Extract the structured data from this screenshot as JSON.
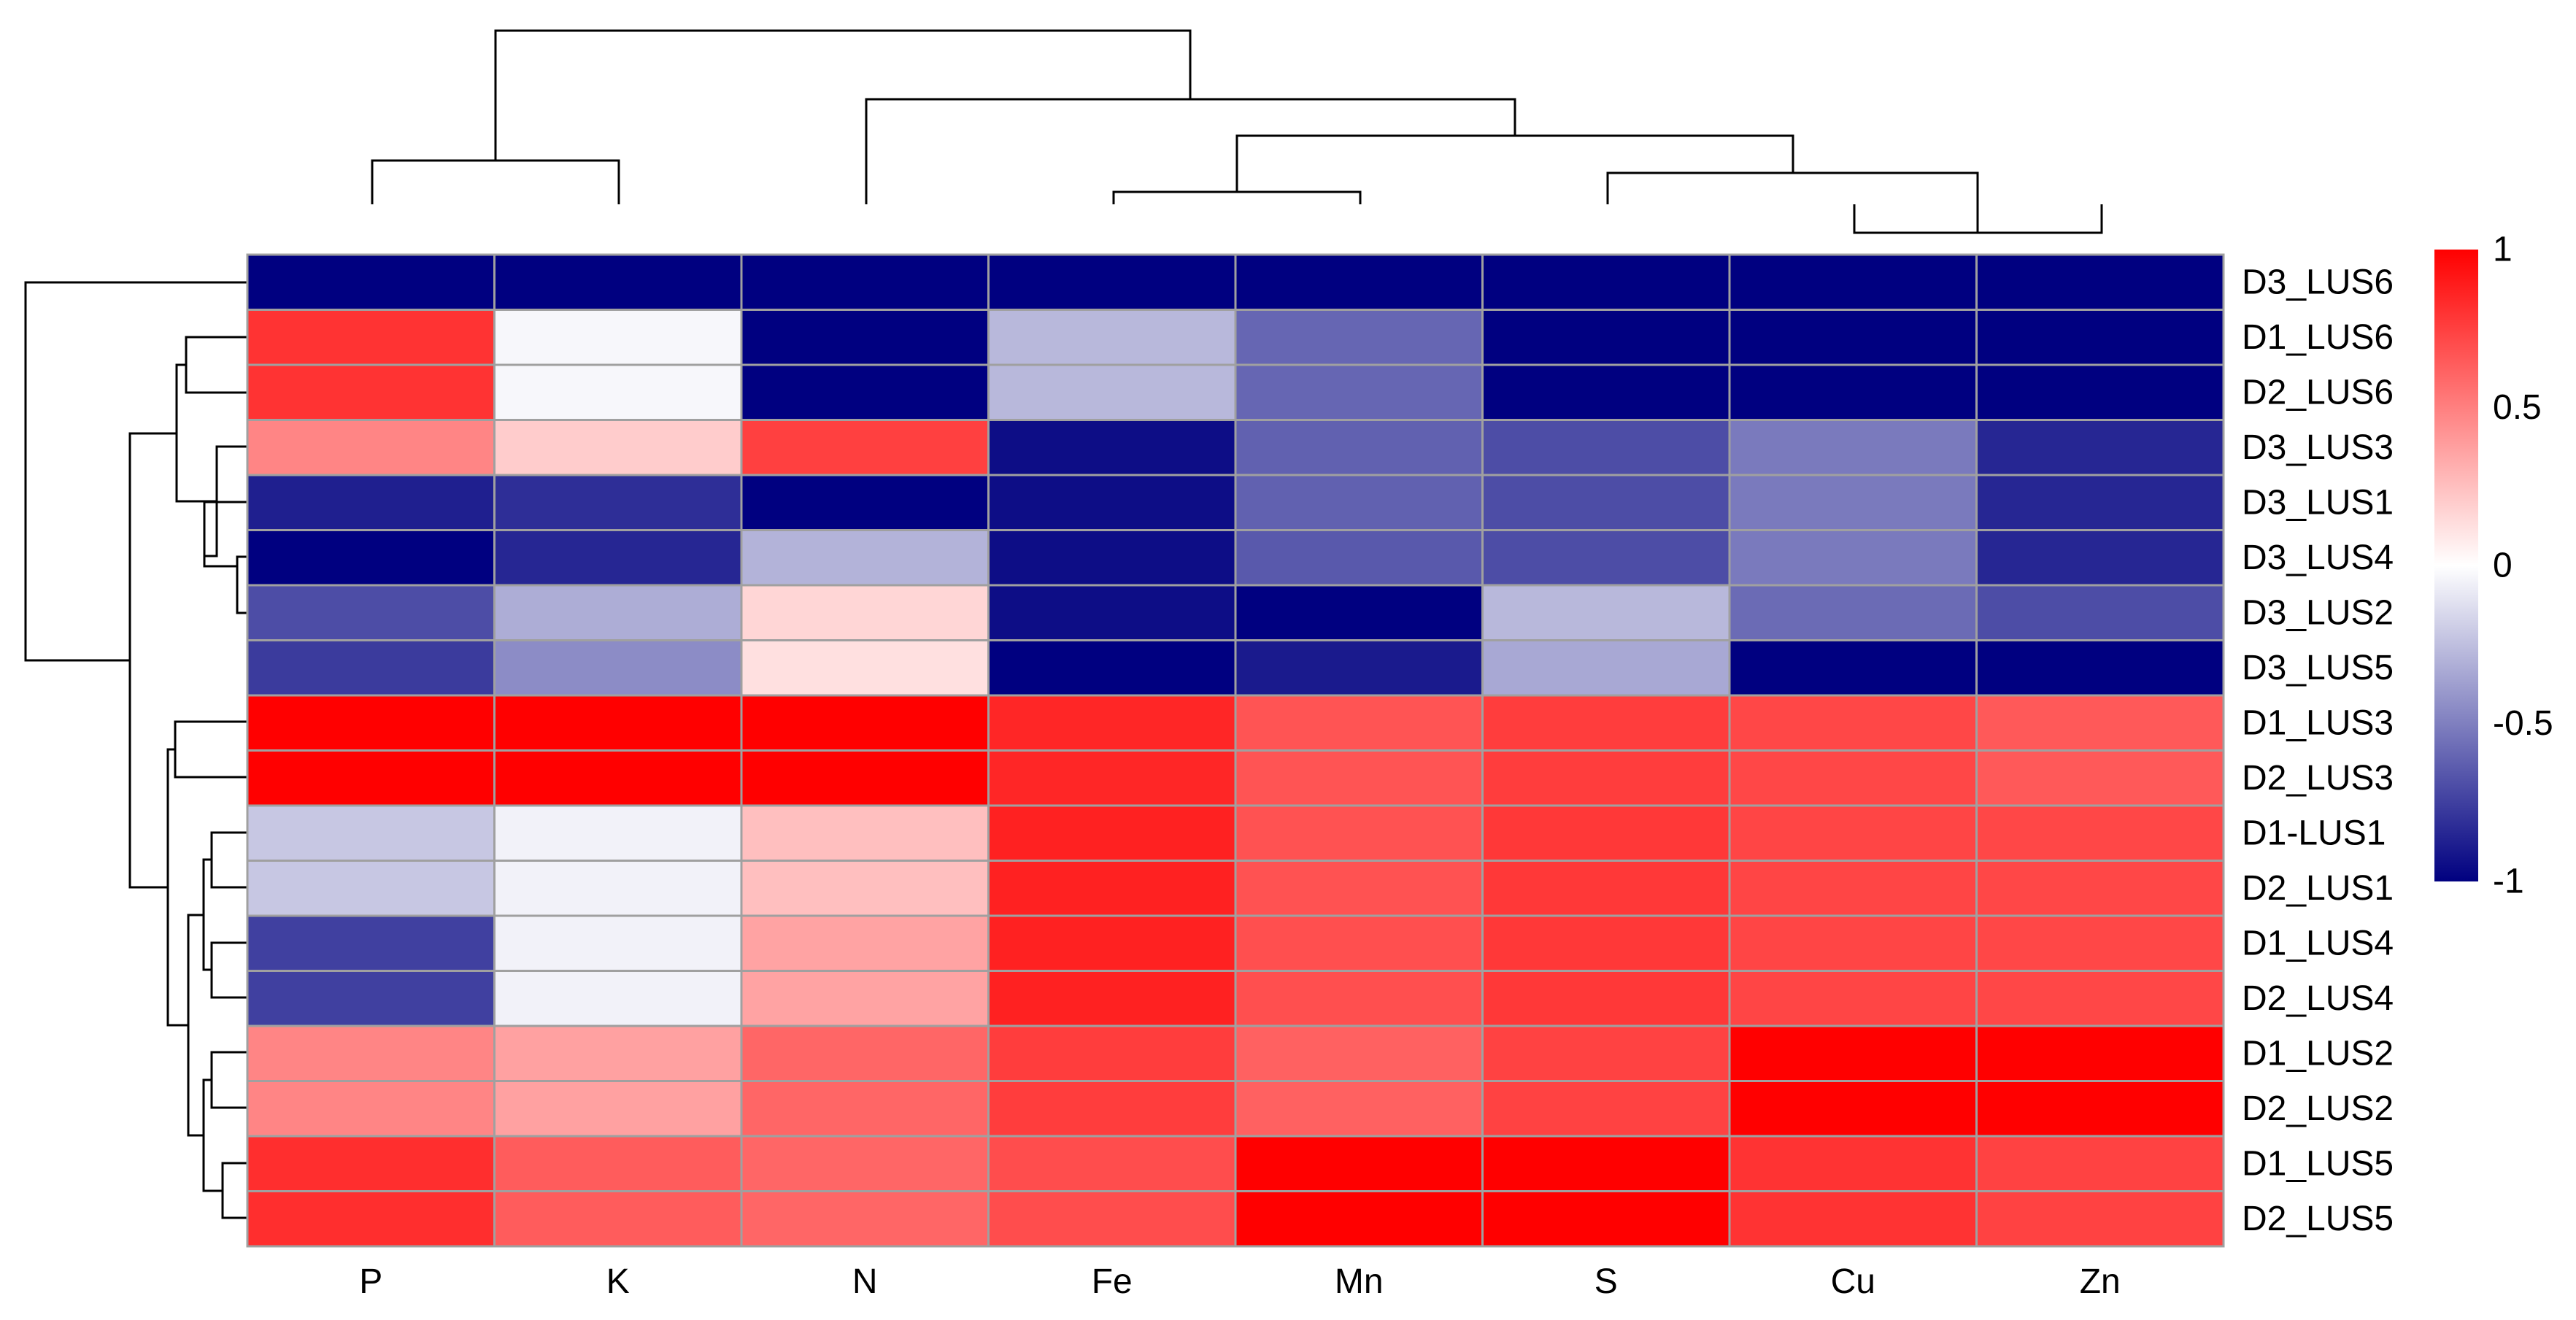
{
  "chart_data": {
    "type": "heatmap",
    "title": "",
    "xlabel": "",
    "ylabel": "",
    "columns": [
      "P",
      "K",
      "N",
      "Fe",
      "Mn",
      "S",
      "Cu",
      "Zn"
    ],
    "rows": [
      "D3_LUS6",
      "D1_LUS6",
      "D2_LUS6",
      "D3_LUS3",
      "D3_LUS1",
      "D3_LUS4",
      "D3_LUS2",
      "D3_LUS5",
      "D1_LUS3",
      "D2_LUS3",
      "D1-LUS1",
      "D2_LUS1",
      "D1_LUS4",
      "D2_LUS4",
      "D1_LUS2",
      "D2_LUS2",
      "D1_LUS5",
      "D2_LUS5"
    ],
    "values": [
      [
        -1.0,
        -1.0,
        -1.0,
        -1.0,
        -1.0,
        -1.0,
        -1.0,
        -1.0
      ],
      [
        0.8,
        -0.03,
        -1.0,
        -0.28,
        -0.6,
        -1.0,
        -1.0,
        -1.0
      ],
      [
        0.8,
        -0.03,
        -1.0,
        -0.28,
        -0.6,
        -1.0,
        -1.0,
        -1.0
      ],
      [
        0.48,
        0.2,
        0.75,
        -0.95,
        -0.62,
        -0.7,
        -0.52,
        -0.85
      ],
      [
        -0.88,
        -0.82,
        -1.0,
        -0.95,
        -0.62,
        -0.7,
        -0.52,
        -0.85
      ],
      [
        -1.0,
        -0.85,
        -0.3,
        -0.95,
        -0.65,
        -0.7,
        -0.52,
        -0.85
      ],
      [
        -0.7,
        -0.32,
        0.16,
        -0.95,
        -1.0,
        -0.28,
        -0.58,
        -0.7
      ],
      [
        -0.77,
        -0.45,
        0.12,
        -1.0,
        -0.9,
        -0.34,
        -1.0,
        -1.0
      ],
      [
        1.0,
        1.0,
        1.0,
        0.85,
        0.67,
        0.76,
        0.72,
        0.65
      ],
      [
        1.0,
        1.0,
        1.0,
        0.85,
        0.67,
        0.76,
        0.72,
        0.65
      ],
      [
        -0.22,
        -0.05,
        0.25,
        0.87,
        0.68,
        0.78,
        0.73,
        0.72
      ],
      [
        -0.22,
        -0.05,
        0.25,
        0.87,
        0.68,
        0.78,
        0.73,
        0.72
      ],
      [
        -0.75,
        -0.05,
        0.36,
        0.87,
        0.69,
        0.78,
        0.73,
        0.72
      ],
      [
        -0.75,
        -0.05,
        0.36,
        0.87,
        0.69,
        0.78,
        0.73,
        0.72
      ],
      [
        0.48,
        0.37,
        0.6,
        0.76,
        0.62,
        0.74,
        1.0,
        1.0
      ],
      [
        0.48,
        0.37,
        0.6,
        0.76,
        0.62,
        0.74,
        1.0,
        1.0
      ],
      [
        0.82,
        0.64,
        0.6,
        0.7,
        1.0,
        1.0,
        0.8,
        0.74
      ],
      [
        0.82,
        0.64,
        0.6,
        0.7,
        1.0,
        1.0,
        0.8,
        0.74
      ]
    ],
    "color_scale": {
      "min": -1,
      "max": 1,
      "low_color": "#000080",
      "mid_color": "#ffffff",
      "high_color": "#ff0000",
      "ticks": [
        1,
        0.5,
        0,
        -0.5,
        -1
      ],
      "tick_labels": [
        "1",
        "0.5",
        "0",
        "-0.5",
        "-1"
      ]
    },
    "cell_border_color": "#a0a0a0",
    "legend_position": "right",
    "column_dendrogram": true,
    "row_dendrogram": true
  }
}
